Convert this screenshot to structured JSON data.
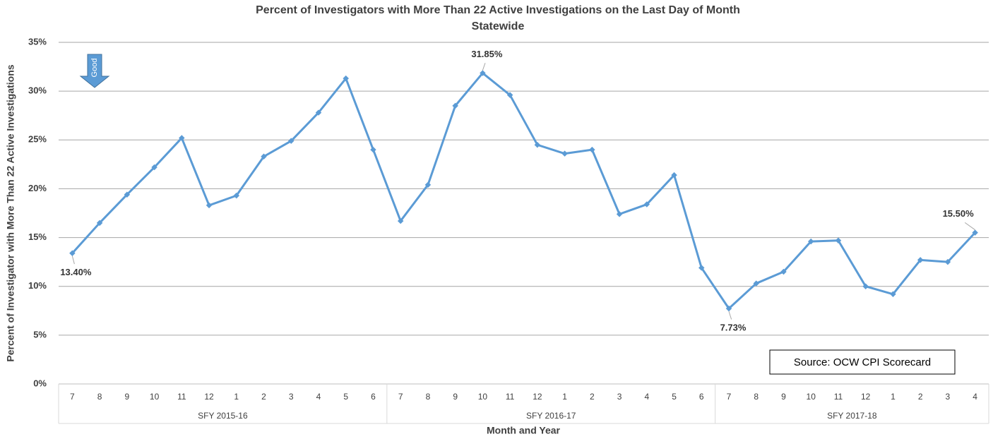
{
  "chart_data": {
    "type": "line",
    "title": "Percent of Investigators with More Than  22 Active Investigations on the Last Day of Month",
    "subtitle": "Statewide",
    "x_label": "Month  and Year",
    "y_label": "Percent of Investigator with More Than 22 Active Investigations",
    "categories": [
      "7",
      "8",
      "9",
      "10",
      "11",
      "12",
      "1",
      "2",
      "3",
      "4",
      "5",
      "6",
      "7",
      "8",
      "9",
      "10",
      "11",
      "12",
      "1",
      "2",
      "3",
      "4",
      "5",
      "6",
      "7",
      "8",
      "9",
      "10",
      "11",
      "12",
      "1",
      "2",
      "3",
      "4"
    ],
    "groups": [
      {
        "name": "SFY 2015-16",
        "size": 12
      },
      {
        "name": "SFY 2016-17",
        "size": 12
      },
      {
        "name": "SFY 2017-18",
        "size": 10
      }
    ],
    "series": [
      {
        "name": "Statewide",
        "color": "#5b9bd5",
        "values": [
          13.4,
          16.5,
          19.4,
          22.2,
          25.2,
          18.3,
          19.3,
          23.3,
          24.9,
          27.8,
          31.3,
          24.0,
          16.7,
          20.4,
          28.5,
          31.85,
          29.6,
          24.5,
          23.6,
          24.0,
          17.4,
          18.4,
          21.4,
          11.9,
          7.73,
          10.3,
          11.5,
          14.6,
          14.7,
          10.0,
          9.2,
          12.7,
          12.5,
          15.5
        ],
        "value_labels": [
          "13.40%",
          null,
          null,
          null,
          null,
          null,
          null,
          null,
          null,
          null,
          null,
          null,
          null,
          null,
          null,
          "31.85%",
          null,
          null,
          null,
          null,
          null,
          null,
          null,
          null,
          "7.73%",
          null,
          null,
          null,
          null,
          null,
          null,
          null,
          null,
          "15.50%"
        ]
      }
    ],
    "ylim": [
      0,
      35
    ],
    "yticks": [
      {
        "value": 0,
        "label": "0%"
      },
      {
        "value": 5,
        "label": "5%"
      },
      {
        "value": 10,
        "label": "10%"
      },
      {
        "value": 15,
        "label": "15%"
      },
      {
        "value": 20,
        "label": "20%"
      },
      {
        "value": 25,
        "label": "25%"
      },
      {
        "value": 30,
        "label": "30%"
      },
      {
        "value": 35,
        "label": "35%"
      }
    ],
    "grid": true,
    "annotations": {
      "source": "Source:  OCW CPI Scorecard",
      "arrow": "Good"
    }
  }
}
